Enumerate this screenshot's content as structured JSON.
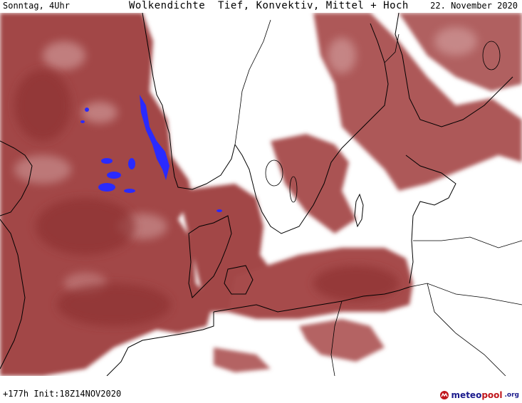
{
  "header": {
    "left": "Sonntag, 4Uhr",
    "title": "Wolkendichte  Tief, Konvektiv, Mittel + Hoch",
    "date": "22. November 2020"
  },
  "footer": {
    "run": "+177h Init:18Z14NOV2020"
  },
  "logo": {
    "part1": "meteo",
    "part2": "pool",
    "part3": ".org"
  },
  "colors": {
    "cloud_dense": "#9b3c3c",
    "cloud_mid": "#b56565",
    "cloud_light": "#cf9a9a",
    "precip": "#2a2aff",
    "coast": "#000000"
  }
}
